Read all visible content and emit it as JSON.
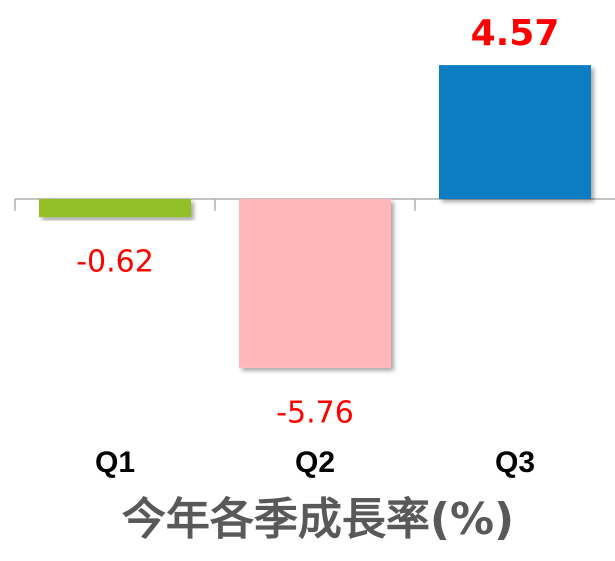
{
  "chart_data": {
    "type": "bar",
    "title": "今年各季成長率(%)",
    "categories": [
      "Q1",
      "Q2",
      "Q3"
    ],
    "values": [
      -0.62,
      -5.76,
      4.57
    ],
    "colors": [
      "#92c027",
      "#ffb7b9",
      "#0a7dc2"
    ],
    "label_color": "#ff0000",
    "ylim": [
      -6,
      5
    ]
  }
}
